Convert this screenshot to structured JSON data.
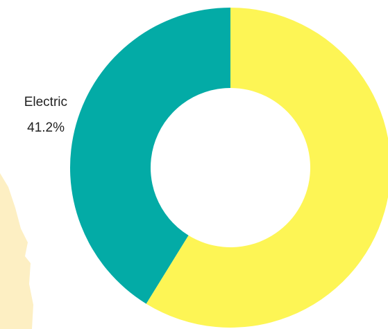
{
  "chart_data": {
    "type": "donut",
    "categories": [
      "Electric",
      null
    ],
    "values": [
      41.2,
      58.8
    ],
    "value_labels": [
      "41.2%",
      null
    ],
    "colors": [
      "#03aba6",
      "#fdf555"
    ]
  }
}
